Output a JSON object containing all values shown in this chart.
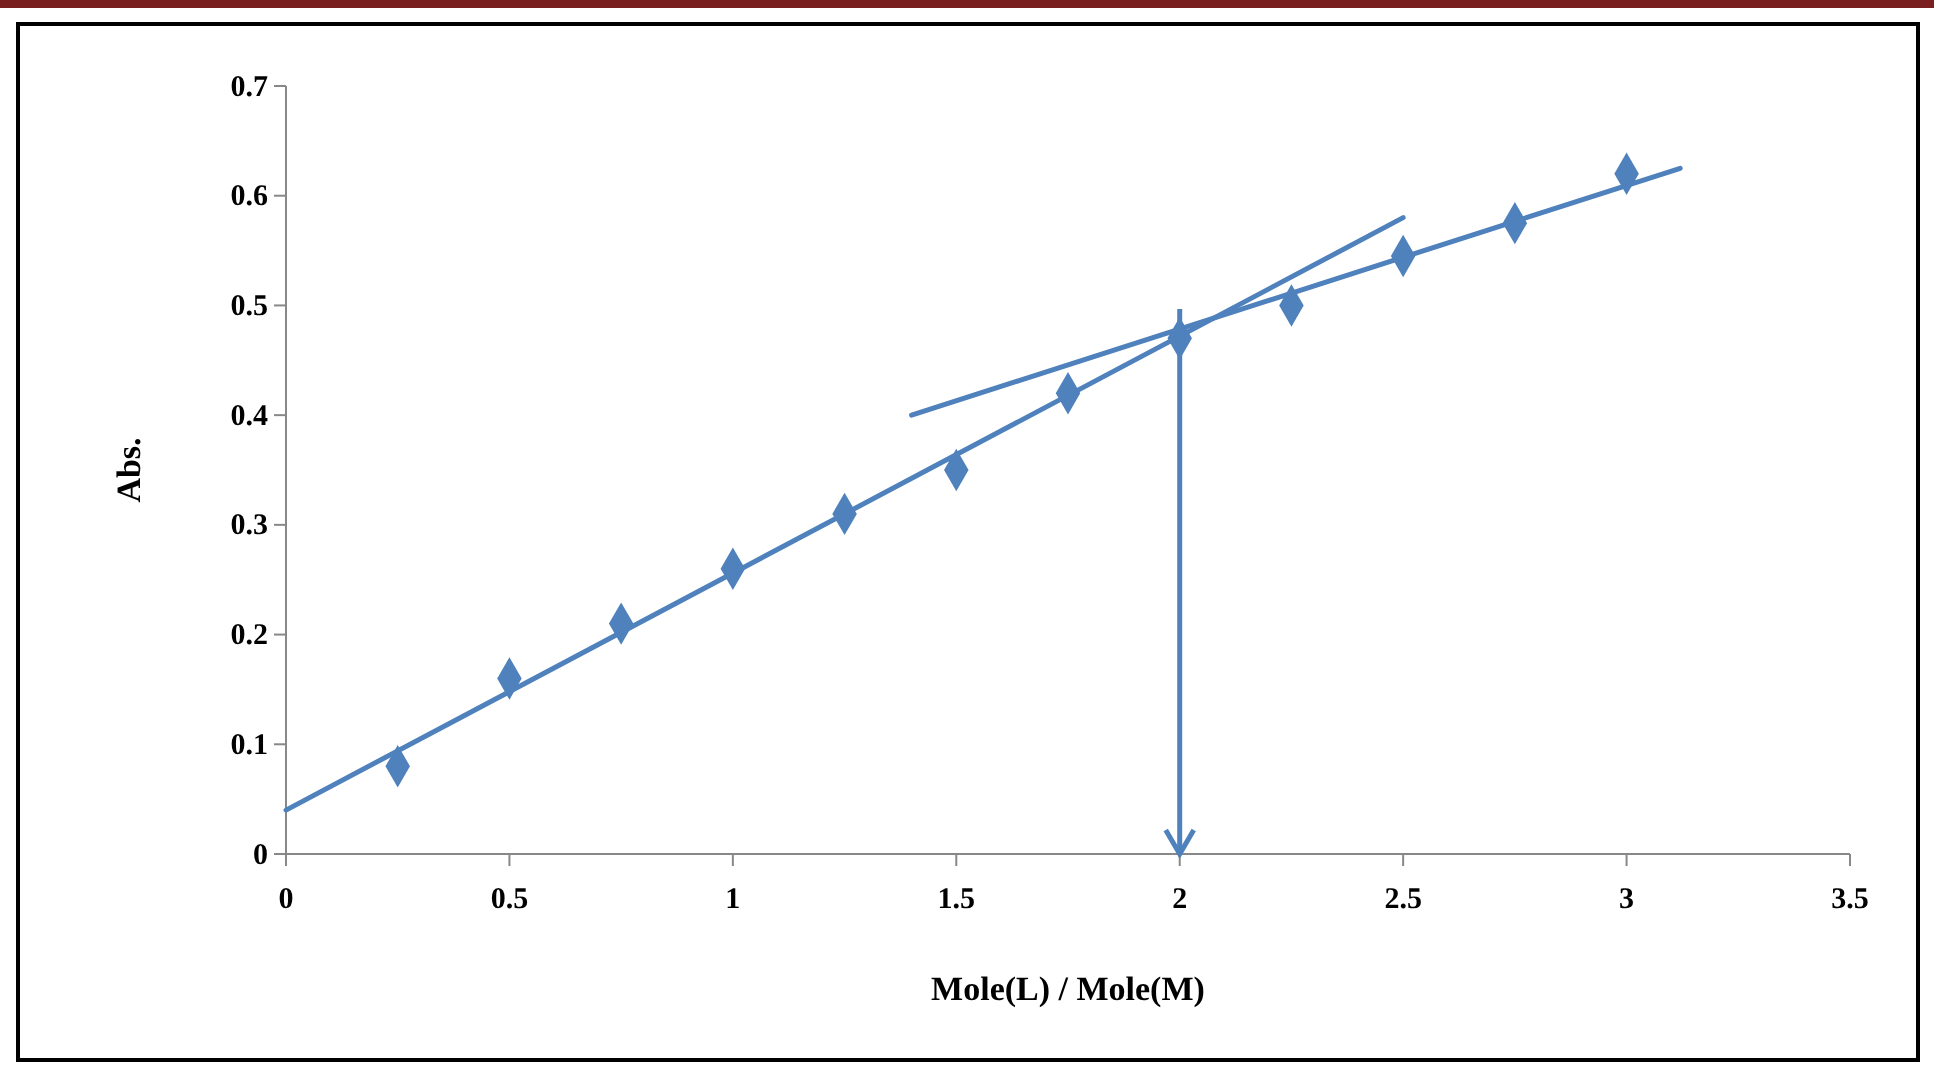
{
  "chart_data": {
    "type": "scatter",
    "xlabel": "Mole(L)  / Mole(M)",
    "ylabel": "Abs.",
    "xlim": [
      0,
      3.5
    ],
    "ylim": [
      0,
      0.7
    ],
    "xticks": [
      0,
      0.5,
      1,
      1.5,
      2,
      2.5,
      3,
      3.5
    ],
    "yticks": [
      0,
      0.1,
      0.2,
      0.3,
      0.4,
      0.5,
      0.6,
      0.7
    ],
    "grid": false,
    "series": [
      {
        "color": "#4f81bd",
        "marker": "diamond",
        "x": [
          0.25,
          0.5,
          0.75,
          1,
          1.25,
          1.5,
          1.75,
          2,
          2.25,
          2.5,
          2.75,
          3
        ],
        "values": [
          0.08,
          0.16,
          0.21,
          0.26,
          0.31,
          0.35,
          0.42,
          0.47,
          0.5,
          0.545,
          0.575,
          0.62
        ]
      },
      {
        "type": "line",
        "color": "#4f81bd",
        "marker": "none",
        "x": [
          0,
          2.5
        ],
        "values": [
          0.04,
          0.58
        ]
      },
      {
        "type": "line",
        "color": "#4f81bd",
        "marker": "none",
        "x": [
          1.4,
          3.12
        ],
        "values": [
          0.4,
          0.625
        ]
      }
    ],
    "ref_lines": [
      {
        "axis": "x",
        "value": 2,
        "color": "#4f81bd"
      }
    ]
  }
}
